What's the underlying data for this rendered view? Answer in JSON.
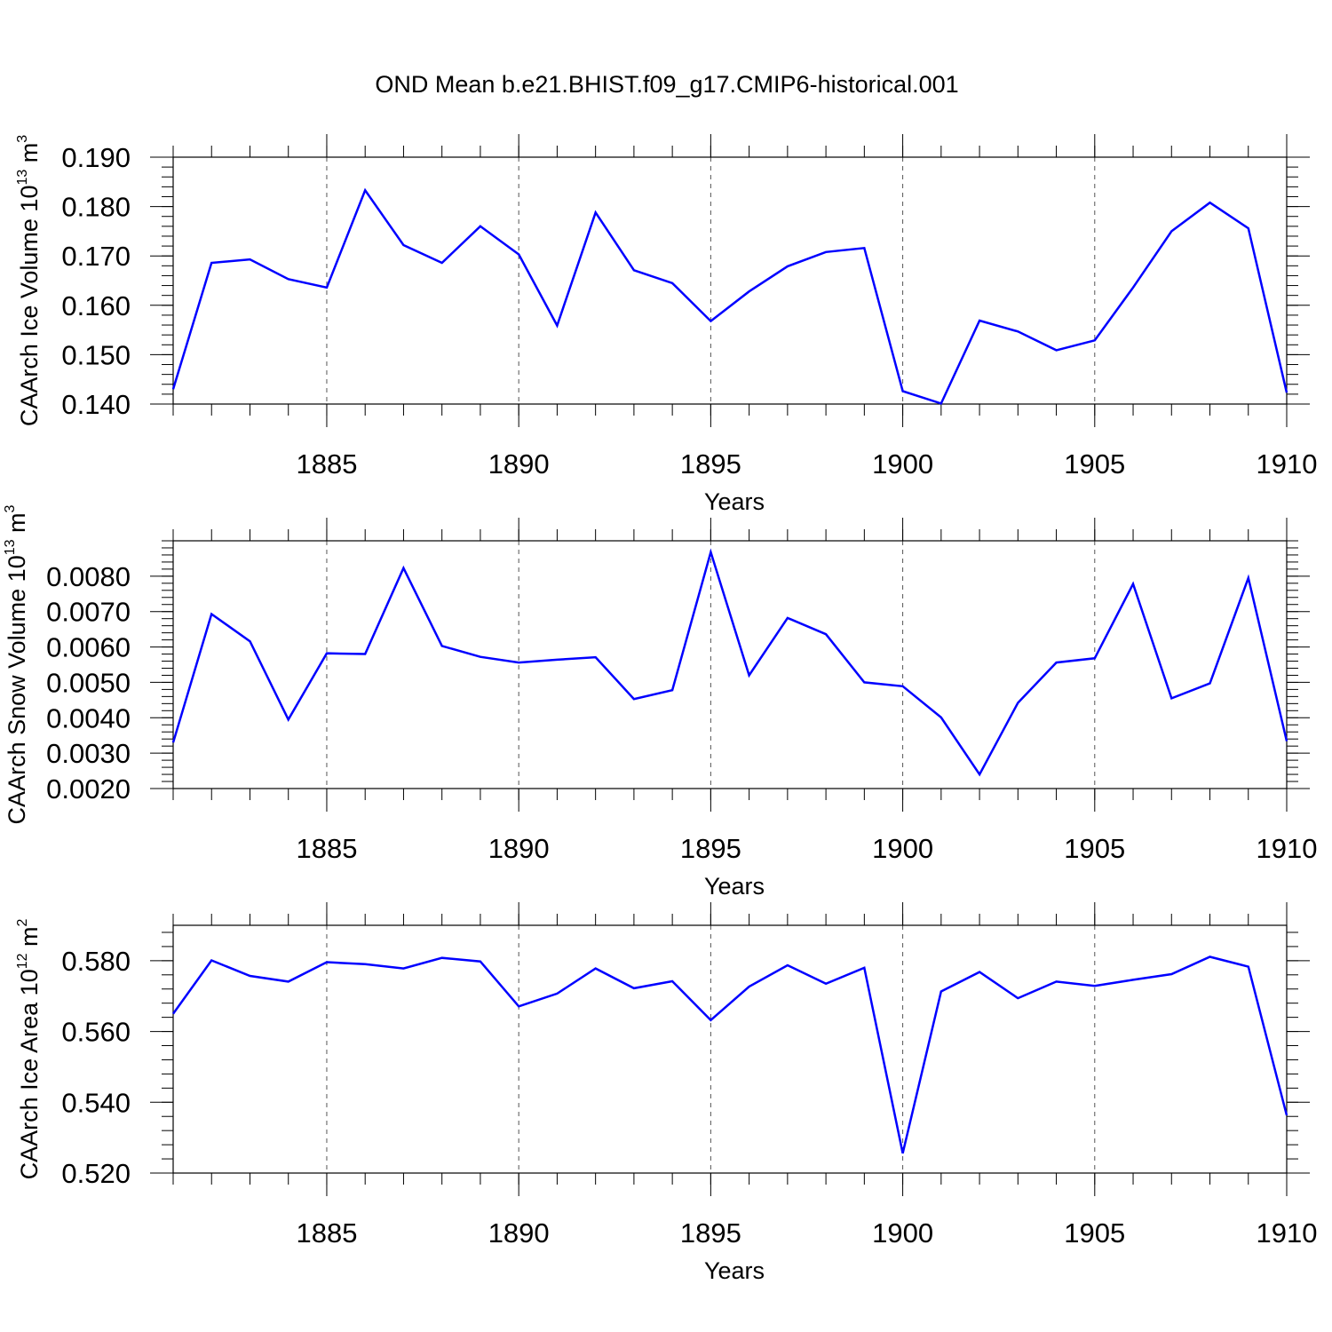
{
  "title": "OND Mean b.e21.BHIST.f09_g17.CMIP6-historical.001",
  "colors": {
    "series": "#0000ff",
    "axis": "#000000",
    "grid": "#555555"
  },
  "chart_data": [
    {
      "type": "line",
      "title": "OND Mean b.e21.BHIST.f09_g17.CMIP6-historical.001",
      "xlabel": "Years",
      "ylabel": {
        "text": "CAArch Ice Volume 10",
        "exp": "13",
        "unit": " m",
        "unit_exp": "3"
      },
      "xlim": [
        1881,
        1910
      ],
      "ylim": [
        0.14,
        0.19
      ],
      "xticks": [
        1885,
        1890,
        1895,
        1900,
        1905,
        1910
      ],
      "xtick_labels": [
        "1885",
        "1890",
        "1895",
        "1900",
        "1905",
        "1910"
      ],
      "yticks": [
        0.14,
        0.15,
        0.16,
        0.17,
        0.18,
        0.19
      ],
      "ytick_labels": [
        "0.140",
        "0.150",
        "0.160",
        "0.170",
        "0.180",
        "0.190"
      ],
      "yminor_step": 0.002,
      "grid": "x-dashed",
      "series": [
        {
          "name": "CAArch Ice Volume",
          "x": [
            1881,
            1882,
            1883,
            1884,
            1885,
            1886,
            1887,
            1888,
            1889,
            1890,
            1891,
            1892,
            1893,
            1894,
            1895,
            1896,
            1897,
            1898,
            1899,
            1900,
            1901,
            1902,
            1903,
            1904,
            1905,
            1906,
            1907,
            1908,
            1909,
            1910
          ],
          "values": [
            0.143,
            0.1686,
            0.1693,
            0.1653,
            0.1636,
            0.1833,
            0.1722,
            0.1686,
            0.176,
            0.1703,
            0.1559,
            0.1788,
            0.1671,
            0.1645,
            0.1568,
            0.1628,
            0.1679,
            0.1708,
            0.1716,
            0.1426,
            0.1401,
            0.1569,
            0.1547,
            0.1509,
            0.1529,
            0.1636,
            0.175,
            0.1808,
            0.1756,
            0.1423
          ]
        }
      ]
    },
    {
      "type": "line",
      "xlabel": "Years",
      "ylabel": {
        "text": "CAArch Snow Volume 10",
        "exp": "13",
        "unit": " m",
        "unit_exp": "3"
      },
      "xlim": [
        1881,
        1910
      ],
      "ylim": [
        0.002,
        0.009
      ],
      "xticks": [
        1885,
        1890,
        1895,
        1900,
        1905,
        1910
      ],
      "xtick_labels": [
        "1885",
        "1890",
        "1895",
        "1900",
        "1905",
        "1910"
      ],
      "yticks": [
        0.002,
        0.003,
        0.004,
        0.005,
        0.006,
        0.007,
        0.008
      ],
      "ytick_labels": [
        "0.0020",
        "0.0030",
        "0.0040",
        "0.0050",
        "0.0060",
        "0.0070",
        "0.0080"
      ],
      "yminor_step": 0.0002,
      "grid": "x-dashed",
      "series": [
        {
          "name": "CAArch Snow Volume",
          "x": [
            1881,
            1882,
            1883,
            1884,
            1885,
            1886,
            1887,
            1888,
            1889,
            1890,
            1891,
            1892,
            1893,
            1894,
            1895,
            1896,
            1897,
            1898,
            1899,
            1900,
            1901,
            1902,
            1903,
            1904,
            1905,
            1906,
            1907,
            1908,
            1909,
            1910
          ],
          "values": [
            0.0033,
            0.00693,
            0.00616,
            0.00395,
            0.00582,
            0.0058,
            0.00823,
            0.00603,
            0.00572,
            0.00556,
            0.00564,
            0.00571,
            0.00453,
            0.00478,
            0.00868,
            0.0052,
            0.00682,
            0.00636,
            0.005,
            0.00489,
            0.00401,
            0.0024,
            0.00442,
            0.00556,
            0.00568,
            0.00778,
            0.00455,
            0.00497,
            0.00795,
            0.00334
          ]
        }
      ]
    },
    {
      "type": "line",
      "xlabel": "Years",
      "ylabel": {
        "text": "CAArch Ice Area 10",
        "exp": "12",
        "unit": " m",
        "unit_exp": "2"
      },
      "xlim": [
        1881,
        1910
      ],
      "ylim": [
        0.52,
        0.59
      ],
      "xticks": [
        1885,
        1890,
        1895,
        1900,
        1905,
        1910
      ],
      "xtick_labels": [
        "1885",
        "1890",
        "1895",
        "1900",
        "1905",
        "1910"
      ],
      "yticks": [
        0.52,
        0.54,
        0.56,
        0.58
      ],
      "ytick_labels": [
        "0.520",
        "0.540",
        "0.560",
        "0.580"
      ],
      "yminor_step": 0.004,
      "grid": "x-dashed",
      "series": [
        {
          "name": "CAArch Ice Area",
          "x": [
            1881,
            1882,
            1883,
            1884,
            1885,
            1886,
            1887,
            1888,
            1889,
            1890,
            1891,
            1892,
            1893,
            1894,
            1895,
            1896,
            1897,
            1898,
            1899,
            1900,
            1901,
            1902,
            1903,
            1904,
            1905,
            1906,
            1907,
            1908,
            1909,
            1910
          ],
          "values": [
            0.565,
            0.5801,
            0.5757,
            0.5741,
            0.5796,
            0.579,
            0.5778,
            0.5808,
            0.5798,
            0.5671,
            0.5707,
            0.5778,
            0.5722,
            0.5742,
            0.5632,
            0.5727,
            0.5787,
            0.5735,
            0.578,
            0.5256,
            0.5713,
            0.5768,
            0.5694,
            0.5741,
            0.5729,
            0.5746,
            0.5762,
            0.5811,
            0.5783,
            0.5363
          ]
        }
      ]
    }
  ]
}
